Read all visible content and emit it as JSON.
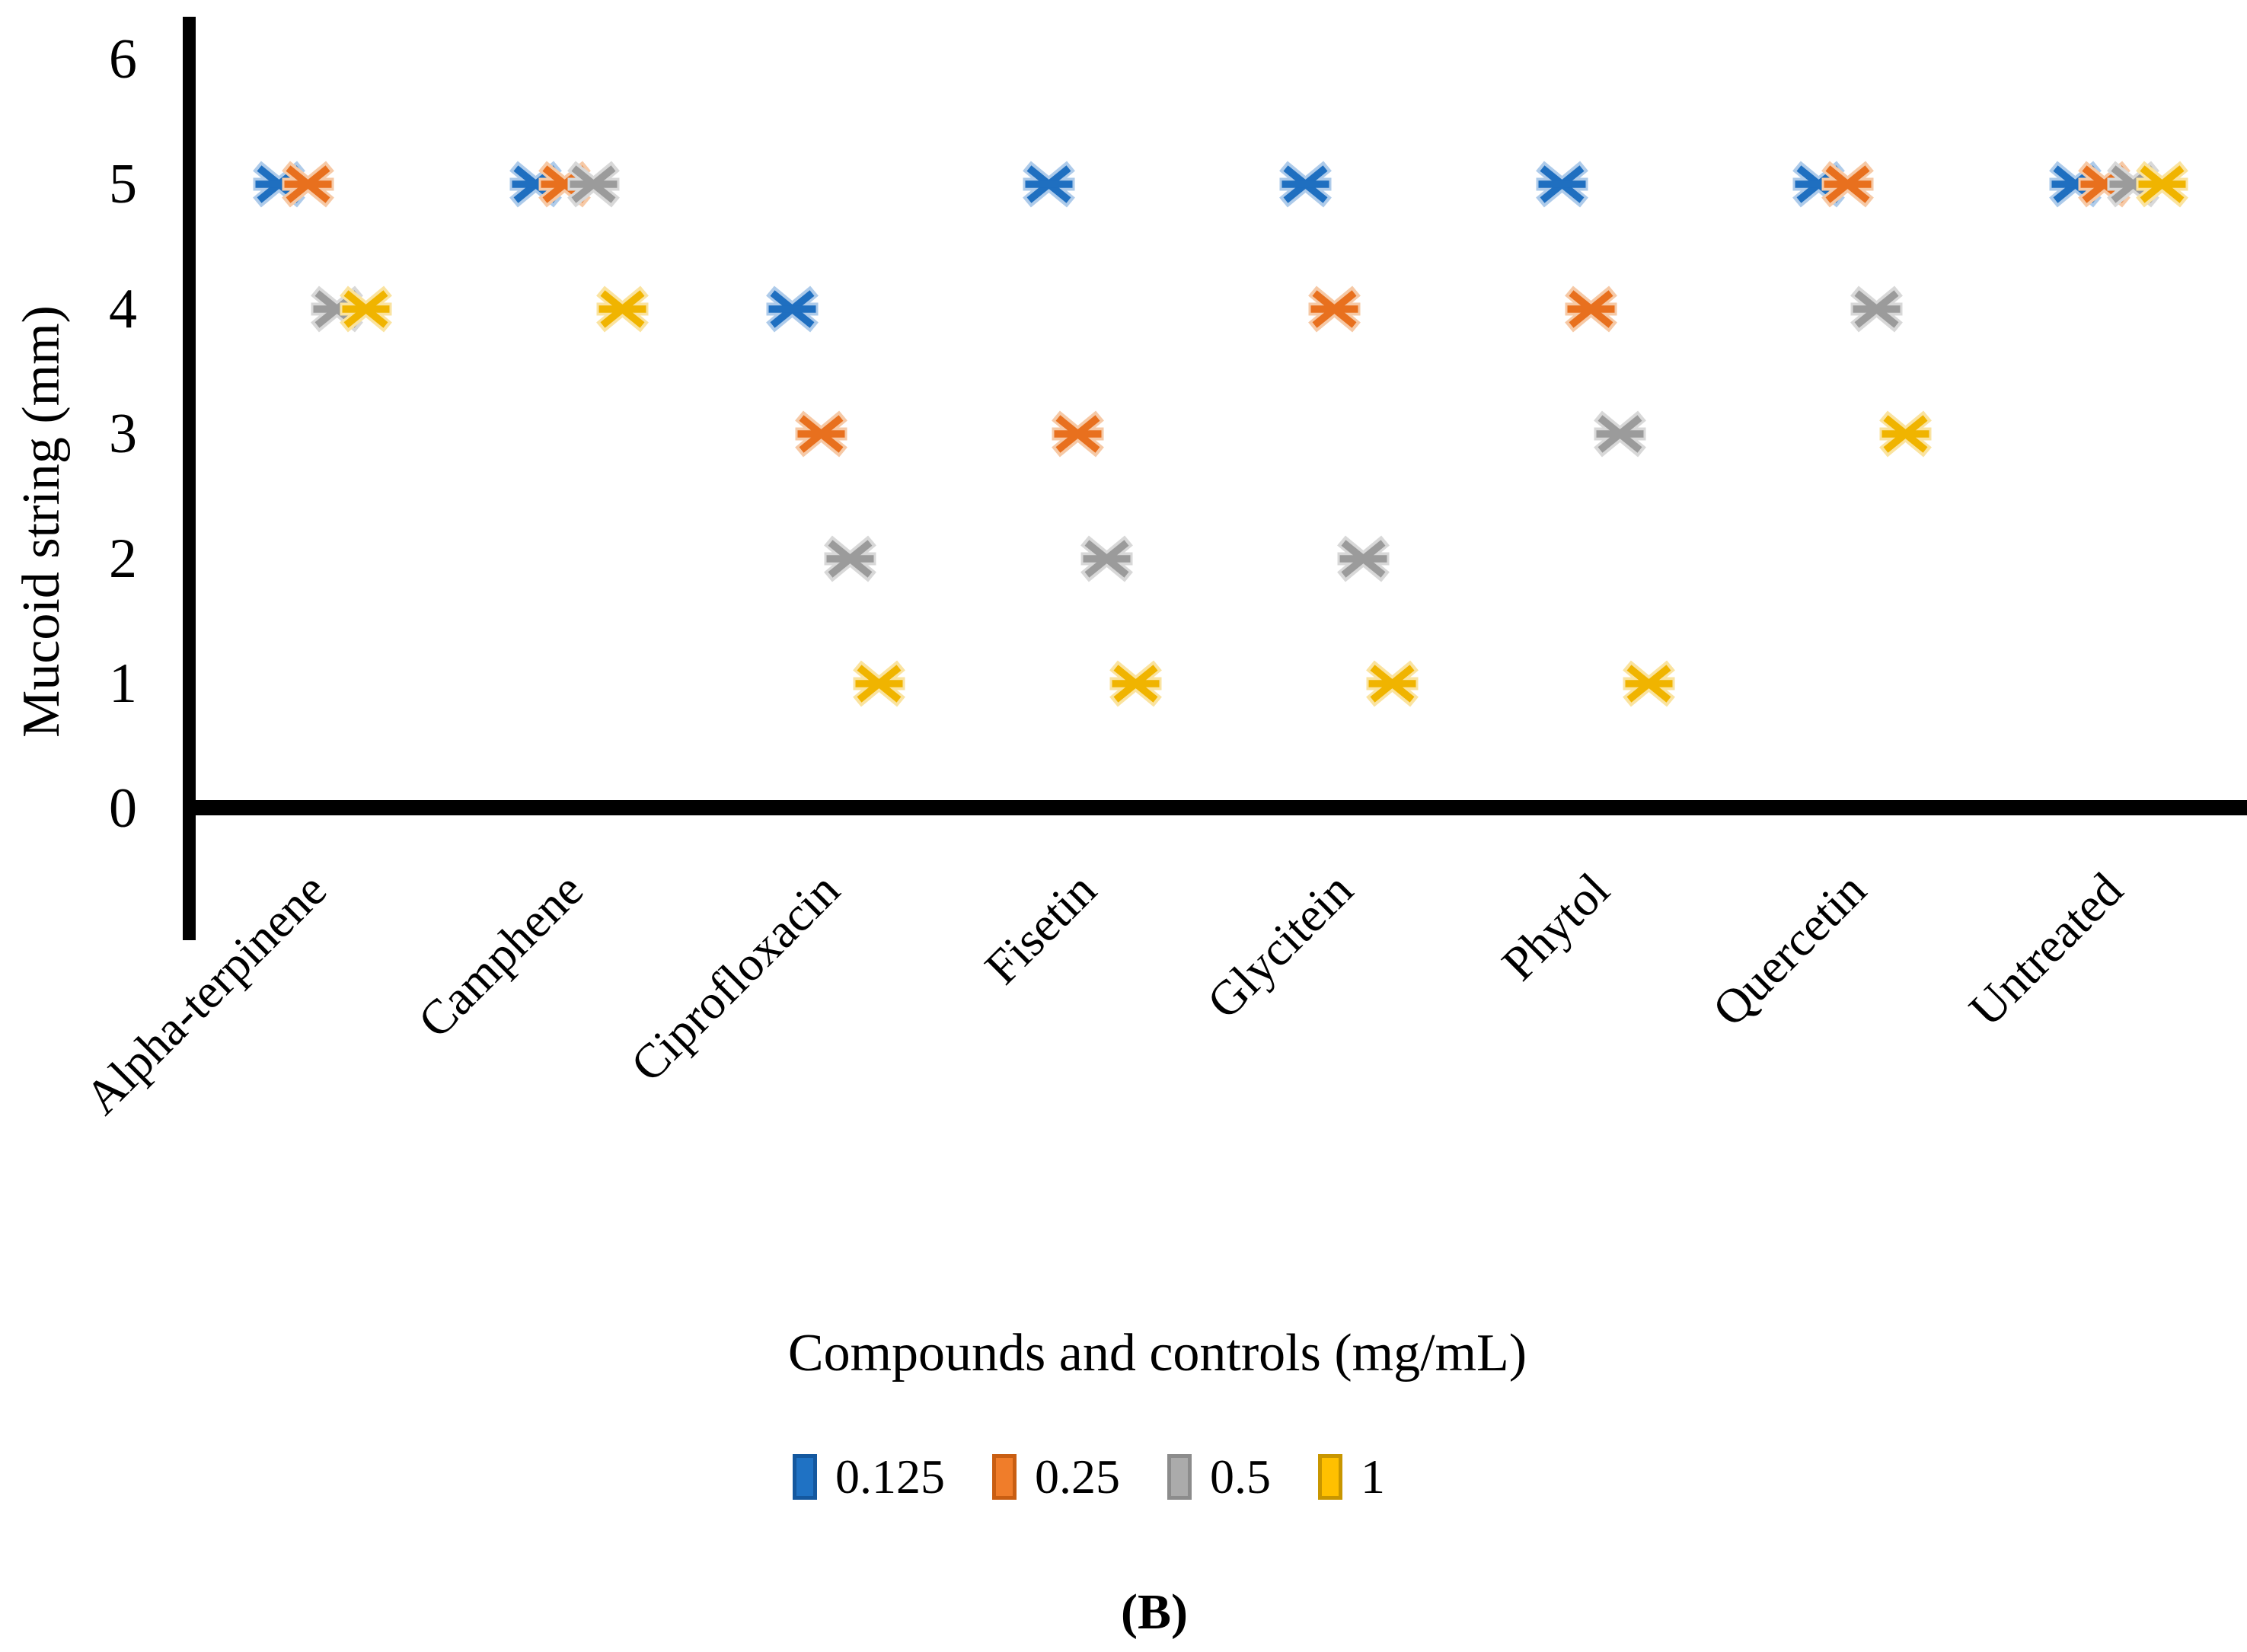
{
  "figure": {
    "caption": "(B)"
  },
  "chart_data": {
    "type": "scatter",
    "marker_style": "x-with-horizontal-bar",
    "xlabel": "Compounds and controls (mg/mL)",
    "ylabel": "Mucoid  string (mm)",
    "ylim": [
      0,
      6
    ],
    "yticks": [
      "0",
      "1",
      "2",
      "3",
      "4",
      "5",
      "6"
    ],
    "grid": "off",
    "legend_position": "bottom",
    "categories": [
      "Alpha-terpinene",
      "Camphene",
      "Ciprofloxacin",
      "Fisetin",
      "Glycitein",
      "Phytol",
      "Quercetin",
      "Untreated"
    ],
    "series": [
      {
        "name": "0.125",
        "color": "#1F6FC0",
        "halo_color": "#AECBEA",
        "swatch_fill": "#1F72C4",
        "swatch_border": "#14589F",
        "values": [
          5,
          5,
          4,
          5,
          5,
          5,
          5,
          5
        ]
      },
      {
        "name": "0.25",
        "color": "#E8701E",
        "halo_color": "#F6C9A6",
        "swatch_fill": "#F07D2A",
        "swatch_border": "#C95E12",
        "values": [
          5,
          5,
          3,
          3,
          4,
          4,
          5,
          5
        ]
      },
      {
        "name": "0.5",
        "color": "#9B9B9B",
        "halo_color": "#D8D8D8",
        "swatch_fill": "#ABABAB",
        "swatch_border": "#8C8C8C",
        "values": [
          4,
          5,
          2,
          2,
          2,
          3,
          4,
          5
        ]
      },
      {
        "name": "1",
        "color": "#F0B400",
        "halo_color": "#FAE3A0",
        "swatch_fill": "#FFC000",
        "swatch_border": "#C89600",
        "values": [
          4,
          4,
          1,
          1,
          1,
          1,
          3,
          5
        ]
      }
    ]
  }
}
